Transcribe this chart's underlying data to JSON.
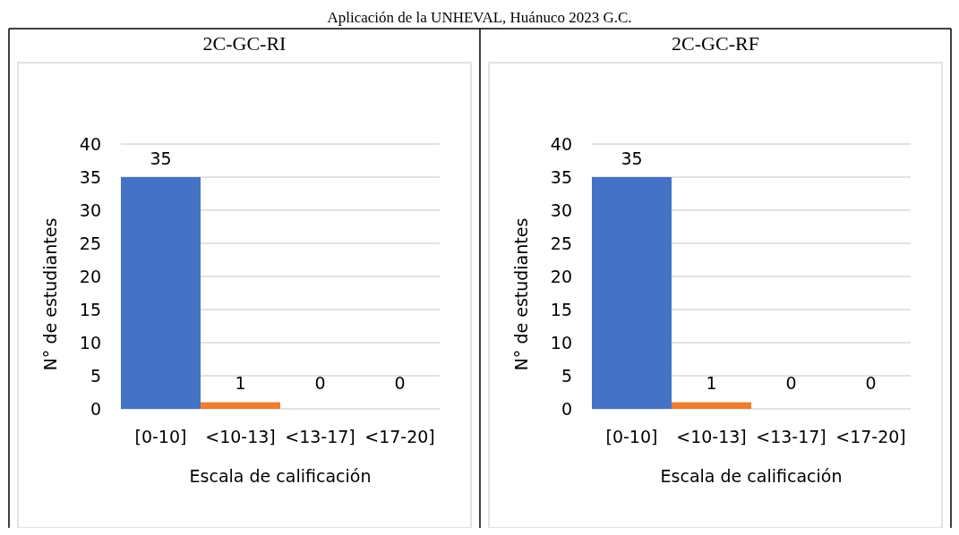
{
  "chart_data": [
    {
      "type": "bar",
      "title": "2C-GC-RI",
      "annotations": [
        "Aplicación de la UNHEVAL, Huánuco 2023 G.C."
      ],
      "xlabel": "Escala de calificación",
      "ylabel": "N° de estudiantes",
      "categories": [
        "[0-10]",
        "<10-13]",
        "<13-17]",
        "<17-20]"
      ],
      "values": [
        35,
        1,
        0,
        0
      ],
      "colors": [
        "#4472c4",
        "#ed7d31",
        "#a5a5a5",
        "#ffc000"
      ],
      "ylim": [
        0,
        40
      ],
      "yticks": [
        0,
        5,
        10,
        15,
        20,
        25,
        30,
        35,
        40
      ],
      "grid": "y",
      "data_labels": true
    },
    {
      "type": "bar",
      "title": "2C-GC-RF",
      "xlabel": "Escala de calificación",
      "ylabel": "N° de estudiantes",
      "categories": [
        "[0-10]",
        "<10-13]",
        "<13-17]",
        "<17-20]"
      ],
      "values": [
        35,
        1,
        0,
        0
      ],
      "colors": [
        "#4472c4",
        "#ed7d31",
        "#a5a5a5",
        "#ffc000"
      ],
      "ylim": [
        0,
        40
      ],
      "yticks": [
        0,
        5,
        10,
        15,
        20,
        25,
        30,
        35,
        40
      ],
      "grid": "y",
      "data_labels": true
    }
  ]
}
